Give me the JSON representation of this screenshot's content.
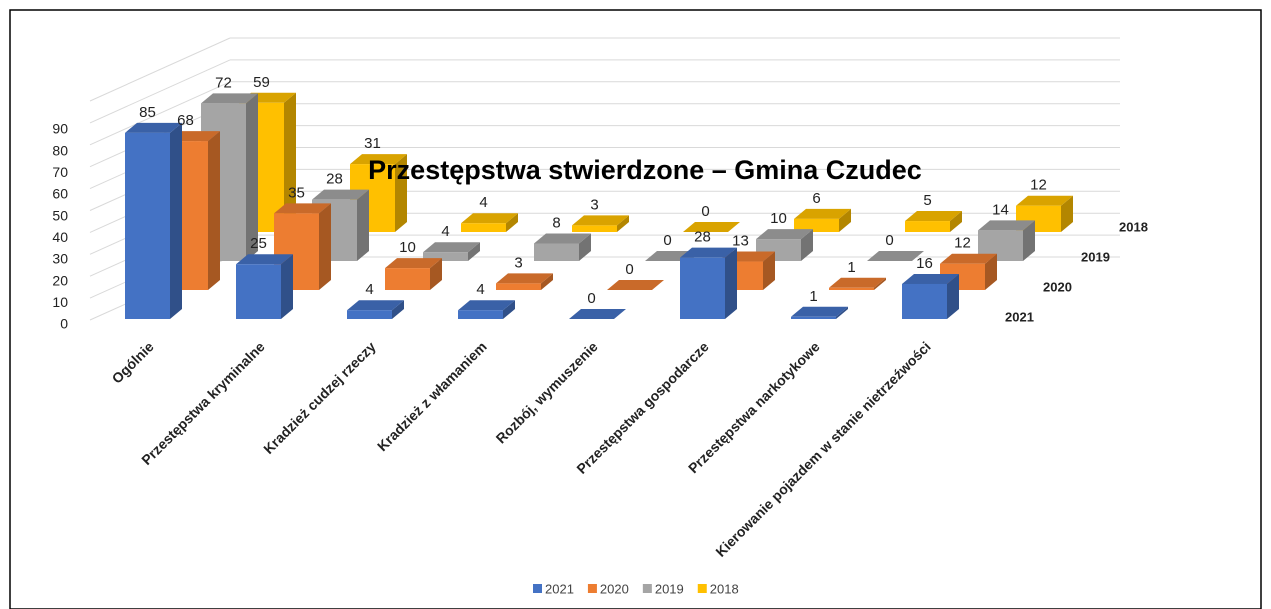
{
  "chart_data": {
    "type": "bar3d",
    "title": "Przestępstwa stwierdzone – Gmina Czudec",
    "categories": [
      "Ogólnie",
      "Przestępstwa kryminalne",
      "Kradzież cudzej rzeczy",
      "Kradzież z włamaniem",
      "Rozbój, wymuszenie",
      "Przestępstwa gospodarcze",
      "Przestępstwa narkotykowe",
      "Kierowanie pojazdem w stanie nietrzeźwości"
    ],
    "series": [
      {
        "name": "2021",
        "color": "#4472c4",
        "values": [
          85,
          25,
          4,
          4,
          0,
          28,
          1,
          16
        ]
      },
      {
        "name": "2020",
        "color": "#ed7d31",
        "values": [
          68,
          35,
          10,
          3,
          0,
          13,
          1,
          12
        ]
      },
      {
        "name": "2019",
        "color": "#a5a5a5",
        "values": [
          72,
          28,
          4,
          8,
          0,
          10,
          0,
          14
        ]
      },
      {
        "name": "2018",
        "color": "#ffc000",
        "values": [
          59,
          31,
          4,
          3,
          0,
          6,
          5,
          12
        ]
      }
    ],
    "ylim": [
      0,
      100
    ],
    "yticks": [
      0,
      10,
      20,
      30,
      40,
      50,
      60,
      70,
      80,
      90
    ],
    "grid": true,
    "legend": "bottom"
  }
}
